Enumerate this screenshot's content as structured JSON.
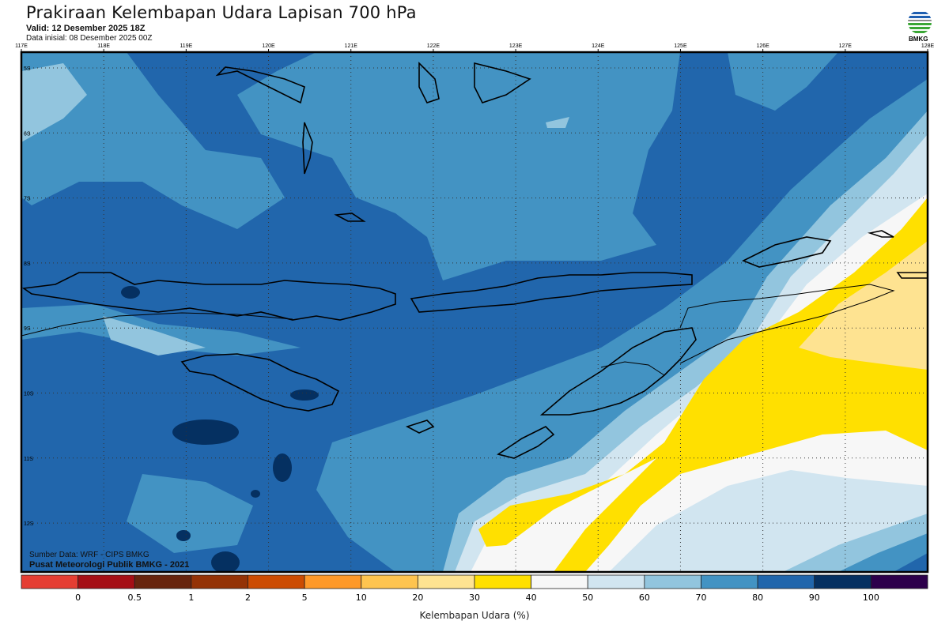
{
  "header": {
    "title": "Prakiraan Kelembapan Udara Lapisan 700 hPa",
    "valid": "Valid: 12 Desember 2025 18Z",
    "initial": "Data inisial: 08 Desember 2025 00Z",
    "logo_text": "BMKG"
  },
  "axes": {
    "lon_labels": [
      "117E",
      "118E",
      "119E",
      "120E",
      "121E",
      "122E",
      "123E",
      "124E",
      "125E",
      "126E",
      "127E",
      "128E"
    ],
    "lat_labels": [
      "5S",
      "6S",
      "7S",
      "8S",
      "9S",
      "10S",
      "11S",
      "12S"
    ]
  },
  "credits": {
    "source": "Sumber Data: WRF - CIPS BMKG",
    "center": "Pusat Meteorologi Publik BMKG - 2021"
  },
  "colorbar": {
    "title": "Kelembapan Udara (%)",
    "colors": [
      "#e53e33",
      "#a50f15",
      "#67250e",
      "#943306",
      "#cc4c02",
      "#fe9929",
      "#fec44f",
      "#fee391",
      "#ffe000",
      "#f7f7f7",
      "#d1e5f0",
      "#92c5de",
      "#4393c3",
      "#2166ac",
      "#053061",
      "#2d004b"
    ],
    "labels": [
      "0",
      "0.5",
      "1",
      "2",
      "5",
      "10",
      "20",
      "30",
      "40",
      "50",
      "60",
      "70",
      "80",
      "90",
      "100"
    ]
  },
  "colors": {
    "rh_90_100": "#053061",
    "rh_80_90": "#2166ac",
    "rh_70_80": "#4393c3",
    "rh_60_70": "#92c5de",
    "rh_50_60": "#d1e5f0",
    "rh_40_50": "#f7f7f7",
    "rh_30_40": "#ffe000",
    "rh_20_30": "#fee391"
  }
}
